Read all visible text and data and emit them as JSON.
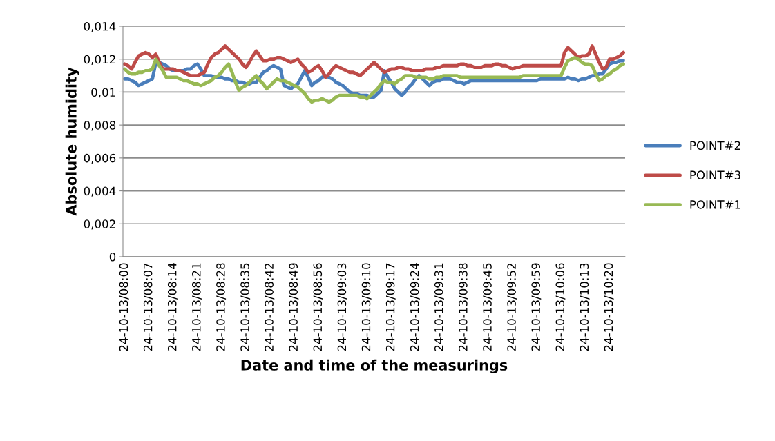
{
  "chart_data": {
    "type": "line",
    "xlabel": "Date and time of the measurings",
    "ylabel": "Absolute humidity",
    "categories": [
      "24-10-13/08:00",
      null,
      null,
      null,
      null,
      null,
      null,
      "24-10-13/08:07",
      null,
      null,
      null,
      null,
      null,
      null,
      "24-10-13/08:14",
      null,
      null,
      null,
      null,
      null,
      null,
      "24-10-13/08:21",
      null,
      null,
      null,
      null,
      null,
      null,
      "24-10-13/08:28",
      null,
      null,
      null,
      null,
      null,
      null,
      "24-10-13/08:35",
      null,
      null,
      null,
      null,
      null,
      null,
      "24-10-13/08:42",
      null,
      null,
      null,
      null,
      null,
      null,
      "24-10-13/08:49",
      null,
      null,
      null,
      null,
      null,
      null,
      "24-10-13/08:56",
      null,
      null,
      null,
      null,
      null,
      null,
      "24-10-13/09:03",
      null,
      null,
      null,
      null,
      null,
      null,
      "24-10-13/09:10",
      null,
      null,
      null,
      null,
      null,
      null,
      "24-10-13/09:17",
      null,
      null,
      null,
      null,
      null,
      null,
      "24-10-13/09:24",
      null,
      null,
      null,
      null,
      null,
      null,
      "24-10-13/09:31",
      null,
      null,
      null,
      null,
      null,
      null,
      "24-10-13/09:38",
      null,
      null,
      null,
      null,
      null,
      null,
      "24-10-13/09:45",
      null,
      null,
      null,
      null,
      null,
      null,
      "24-10-13/09:52",
      null,
      null,
      null,
      null,
      null,
      null,
      "24-10-13/09:59",
      null,
      null,
      null,
      null,
      null,
      null,
      "24-10-13/10:06",
      null,
      null,
      null,
      null,
      null,
      null,
      "24-10-13/10:13",
      null,
      null,
      null,
      null,
      null,
      null,
      "24-10-13/10:20",
      null,
      null,
      null,
      null
    ],
    "ylim": [
      0,
      0.014
    ],
    "yticks": [
      {
        "value": 0,
        "label": "0"
      },
      {
        "value": 0.002,
        "label": "0,002"
      },
      {
        "value": 0.004,
        "label": "0,004"
      },
      {
        "value": 0.006,
        "label": "0,006"
      },
      {
        "value": 0.008,
        "label": "0,008"
      },
      {
        "value": 0.01,
        "label": "0,01"
      },
      {
        "value": 0.012,
        "label": "0,012"
      },
      {
        "value": 0.014,
        "label": "0,014"
      }
    ],
    "grid": "y",
    "legend": "right",
    "marker": "none",
    "line_style": "solid",
    "series": [
      {
        "name": "POINT#2",
        "color": "#4a7ebb",
        "values": [
          0.0108,
          0.0108,
          0.0107,
          0.0106,
          0.0104,
          0.0105,
          0.0106,
          0.0107,
          0.0108,
          0.0118,
          0.0118,
          0.0117,
          0.0116,
          0.0114,
          0.0113,
          0.0113,
          0.0113,
          0.0113,
          0.0114,
          0.0114,
          0.0116,
          0.0117,
          0.0114,
          0.011,
          0.011,
          0.011,
          0.0109,
          0.0109,
          0.0109,
          0.0108,
          0.0108,
          0.0107,
          0.0107,
          0.0106,
          0.0106,
          0.0105,
          0.0105,
          0.0106,
          0.0106,
          0.0109,
          0.0112,
          0.0113,
          0.0115,
          0.0116,
          0.0115,
          0.0114,
          0.0104,
          0.0103,
          0.0102,
          0.0104,
          0.0105,
          0.0109,
          0.0113,
          0.0109,
          0.0104,
          0.0106,
          0.0107,
          0.0109,
          0.011,
          0.0109,
          0.0108,
          0.0106,
          0.0105,
          0.0104,
          0.0102,
          0.01,
          0.0099,
          0.0099,
          0.0098,
          0.0098,
          0.0098,
          0.0097,
          0.0097,
          0.0099,
          0.0101,
          0.0113,
          0.0109,
          0.0106,
          0.0102,
          0.01,
          0.0098,
          0.01,
          0.0103,
          0.0105,
          0.0108,
          0.011,
          0.0108,
          0.0106,
          0.0104,
          0.0106,
          0.0107,
          0.0107,
          0.0108,
          0.0108,
          0.0108,
          0.0107,
          0.0106,
          0.0106,
          0.0105,
          0.0106,
          0.0107,
          0.0107,
          0.0107,
          0.0107,
          0.0107,
          0.0107,
          0.0107,
          0.0107,
          0.0107,
          0.0107,
          0.0107,
          0.0107,
          0.0107,
          0.0107,
          0.0107,
          0.0107,
          0.0107,
          0.0107,
          0.0107,
          0.0107,
          0.0108,
          0.0108,
          0.0108,
          0.0108,
          0.0108,
          0.0108,
          0.0108,
          0.0108,
          0.0109,
          0.0108,
          0.0108,
          0.0107,
          0.0108,
          0.0108,
          0.0109,
          0.011,
          0.011,
          0.0111,
          0.0111,
          0.0114,
          0.0117,
          0.0118,
          0.0118,
          0.0119,
          0.0119
        ]
      },
      {
        "name": "POINT#3",
        "color": "#be4b48",
        "values": [
          0.0117,
          0.0116,
          0.0114,
          0.0118,
          0.0122,
          0.0123,
          0.0124,
          0.0123,
          0.0121,
          0.0123,
          0.0118,
          0.0114,
          0.0114,
          0.0114,
          0.0114,
          0.0113,
          0.0113,
          0.0112,
          0.0111,
          0.011,
          0.011,
          0.011,
          0.0111,
          0.0112,
          0.0117,
          0.0121,
          0.0123,
          0.0124,
          0.0126,
          0.0128,
          0.0126,
          0.0124,
          0.0122,
          0.012,
          0.0117,
          0.0115,
          0.0118,
          0.0122,
          0.0125,
          0.0122,
          0.0119,
          0.0119,
          0.012,
          0.012,
          0.0121,
          0.0121,
          0.012,
          0.0119,
          0.0118,
          0.0119,
          0.012,
          0.0117,
          0.0115,
          0.0112,
          0.0113,
          0.0115,
          0.0116,
          0.0113,
          0.0109,
          0.0111,
          0.0114,
          0.0116,
          0.0115,
          0.0114,
          0.0113,
          0.0112,
          0.0112,
          0.0111,
          0.011,
          0.0112,
          0.0114,
          0.0116,
          0.0118,
          0.0116,
          0.0114,
          0.0112,
          0.0113,
          0.0114,
          0.0114,
          0.0115,
          0.0115,
          0.0114,
          0.0114,
          0.0113,
          0.0113,
          0.0113,
          0.0113,
          0.0114,
          0.0114,
          0.0114,
          0.0115,
          0.0115,
          0.0116,
          0.0116,
          0.0116,
          0.0116,
          0.0116,
          0.0117,
          0.0117,
          0.0116,
          0.0116,
          0.0115,
          0.0115,
          0.0115,
          0.0116,
          0.0116,
          0.0116,
          0.0117,
          0.0117,
          0.0116,
          0.0116,
          0.0115,
          0.0114,
          0.0115,
          0.0115,
          0.0116,
          0.0116,
          0.0116,
          0.0116,
          0.0116,
          0.0116,
          0.0116,
          0.0116,
          0.0116,
          0.0116,
          0.0116,
          0.0116,
          0.0124,
          0.0127,
          0.0125,
          0.0123,
          0.0121,
          0.0122,
          0.0122,
          0.0123,
          0.0128,
          0.0123,
          0.0118,
          0.0114,
          0.0115,
          0.012,
          0.012,
          0.0121,
          0.0122,
          0.0124
        ]
      },
      {
        "name": "POINT#1",
        "color": "#98b954",
        "values": [
          0.0114,
          0.0112,
          0.0111,
          0.0111,
          0.0112,
          0.0112,
          0.0113,
          0.0113,
          0.0114,
          0.012,
          0.0116,
          0.0113,
          0.0109,
          0.0109,
          0.0109,
          0.0109,
          0.0108,
          0.0107,
          0.0107,
          0.0106,
          0.0105,
          0.0105,
          0.0104,
          0.0105,
          0.0106,
          0.0107,
          0.0109,
          0.011,
          0.0112,
          0.0115,
          0.0117,
          0.0112,
          0.0106,
          0.0101,
          0.0103,
          0.0104,
          0.0106,
          0.0108,
          0.011,
          0.0107,
          0.0105,
          0.0102,
          0.0104,
          0.0106,
          0.0108,
          0.0107,
          0.0107,
          0.0106,
          0.0105,
          0.0104,
          0.0103,
          0.0101,
          0.0099,
          0.0096,
          0.0094,
          0.0095,
          0.0095,
          0.0096,
          0.0095,
          0.0094,
          0.0095,
          0.0097,
          0.0098,
          0.0098,
          0.0098,
          0.0098,
          0.0098,
          0.0098,
          0.0097,
          0.0097,
          0.0096,
          0.0098,
          0.01,
          0.0102,
          0.0105,
          0.0107,
          0.0106,
          0.0106,
          0.0105,
          0.0107,
          0.0108,
          0.011,
          0.011,
          0.011,
          0.0109,
          0.0109,
          0.0109,
          0.0109,
          0.0108,
          0.0108,
          0.0109,
          0.0109,
          0.011,
          0.011,
          0.011,
          0.011,
          0.011,
          0.0109,
          0.0109,
          0.0109,
          0.0109,
          0.0109,
          0.0109,
          0.0109,
          0.0109,
          0.0109,
          0.0109,
          0.0109,
          0.0109,
          0.0109,
          0.0109,
          0.0109,
          0.0109,
          0.0109,
          0.0109,
          0.011,
          0.011,
          0.011,
          0.011,
          0.011,
          0.011,
          0.011,
          0.011,
          0.011,
          0.011,
          0.011,
          0.011,
          0.0115,
          0.0119,
          0.012,
          0.0121,
          0.012,
          0.0118,
          0.0117,
          0.0117,
          0.0116,
          0.0111,
          0.0107,
          0.0108,
          0.011,
          0.0111,
          0.0113,
          0.0114,
          0.0116,
          0.0117
        ]
      }
    ]
  }
}
